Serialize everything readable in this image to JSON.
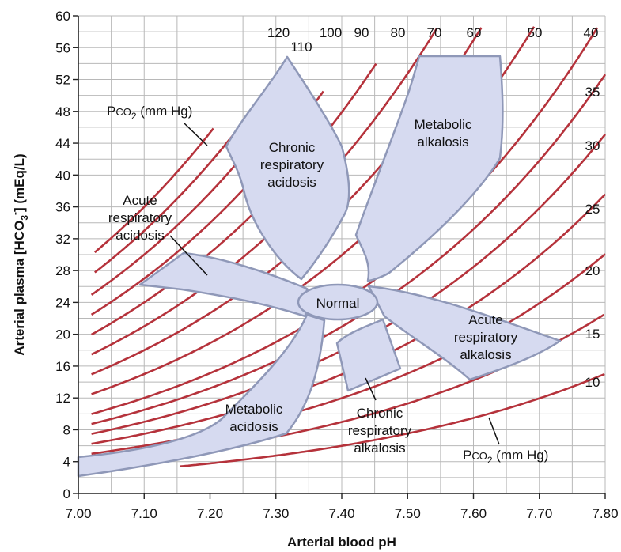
{
  "chart_data": {
    "type": "line",
    "title": "",
    "xlabel": "Arterial blood pH",
    "ylabel": "Arterial plasma [HCO3-] (mEq/L)",
    "ylabel_parts": {
      "main": "Arterial plasma [HCO",
      "sub": "3",
      "sup": "-",
      "tail": "] (mEq/L)"
    },
    "xlim": [
      7.0,
      7.8
    ],
    "ylim": [
      0,
      60
    ],
    "x_ticks": [
      "7.00",
      "7.10",
      "7.20",
      "7.30",
      "7.40",
      "7.50",
      "7.60",
      "7.70",
      "7.80"
    ],
    "y_ticks": [
      "0",
      "4",
      "8",
      "12",
      "16",
      "20",
      "24",
      "28",
      "32",
      "36",
      "40",
      "44",
      "48",
      "52",
      "56",
      "60"
    ],
    "grid": true,
    "isopleth_formula": "HCO3 = 0.03 * PCO2 * 10^(pH - 6.1)",
    "pco2_isopleths": [
      120,
      110,
      100,
      90,
      80,
      70,
      60,
      50,
      40,
      35,
      30,
      25,
      20,
      15,
      10
    ],
    "series_label_text": {
      "upper": {
        "prefix": "P",
        "small": "CO",
        "sub": "2",
        "tail": " (mm Hg)"
      },
      "lower": {
        "prefix": "P",
        "small": "CO",
        "sub": "2",
        "tail": " (mm Hg)"
      }
    },
    "regions": [
      {
        "name": "Normal",
        "lines": [
          "Normal"
        ]
      },
      {
        "name": "Chronic respiratory acidosis",
        "lines": [
          "Chronic",
          "respiratory",
          "acidosis"
        ]
      },
      {
        "name": "Metabolic alkalosis",
        "lines": [
          "Metabolic",
          "alkalosis"
        ]
      },
      {
        "name": "Acute respiratory acidosis",
        "lines": [
          "Acute",
          "respiratory",
          "acidosis"
        ]
      },
      {
        "name": "Acute respiratory alkalosis",
        "lines": [
          "Acute",
          "respiratory",
          "alkalosis"
        ]
      },
      {
        "name": "Metabolic acidosis",
        "lines": [
          "Metabolic",
          "acidosis"
        ]
      },
      {
        "name": "Chronic respiratory alkalosis",
        "lines": [
          "Chronic",
          "respiratory",
          "alkalosis"
        ]
      }
    ],
    "colors": {
      "isopleth": "#b5323b",
      "grid": "#b8b8b8",
      "region_fill": "#d6daf0",
      "region_stroke": "#8f98b8",
      "axis": "#222222"
    }
  }
}
